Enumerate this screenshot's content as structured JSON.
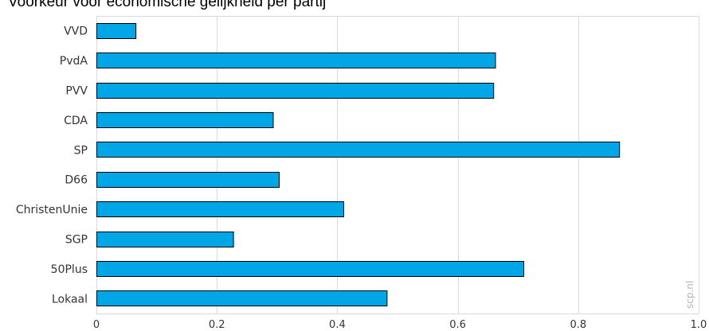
{
  "chart_data": {
    "type": "bar",
    "orientation": "horizontal",
    "title": "Voorkeur voor economische gelijkheid per partij",
    "categories": [
      "VVD",
      "PvdA",
      "PVV",
      "CDA",
      "SP",
      "D66",
      "ChristenUnie",
      "SGP",
      "50Plus",
      "Lokaal"
    ],
    "values": [
      0.065,
      0.662,
      0.659,
      0.293,
      0.868,
      0.303,
      0.41,
      0.227,
      0.709,
      0.482
    ],
    "xlim": [
      0,
      1.0
    ],
    "ticks": [
      0,
      0.2,
      0.4,
      0.6,
      0.8,
      1.0
    ],
    "tick_labels": [
      "0",
      "0.2",
      "0.4",
      "0.6",
      "0.8",
      "1.0"
    ],
    "xlabel": "",
    "ylabel": "",
    "grid": true,
    "legend": "none",
    "bar_color": "#00a6e6",
    "watermark": "scp.nl"
  }
}
